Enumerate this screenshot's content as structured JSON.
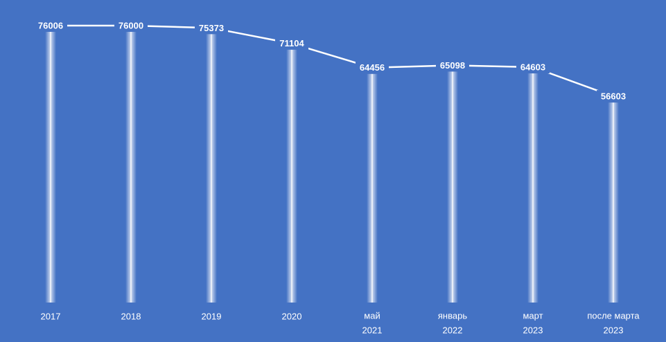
{
  "chart_data": {
    "type": "line",
    "categories": [
      [
        "2017"
      ],
      [
        "2018"
      ],
      [
        "2019"
      ],
      [
        "2020"
      ],
      [
        "май",
        "2021"
      ],
      [
        "январь",
        "2022"
      ],
      [
        "март",
        "2023"
      ],
      [
        "после  марта",
        "2023"
      ]
    ],
    "values": [
      76006,
      76000,
      75373,
      71104,
      64456,
      65098,
      64603,
      56603
    ],
    "color": "#ffffff",
    "background": "#4472c4"
  }
}
